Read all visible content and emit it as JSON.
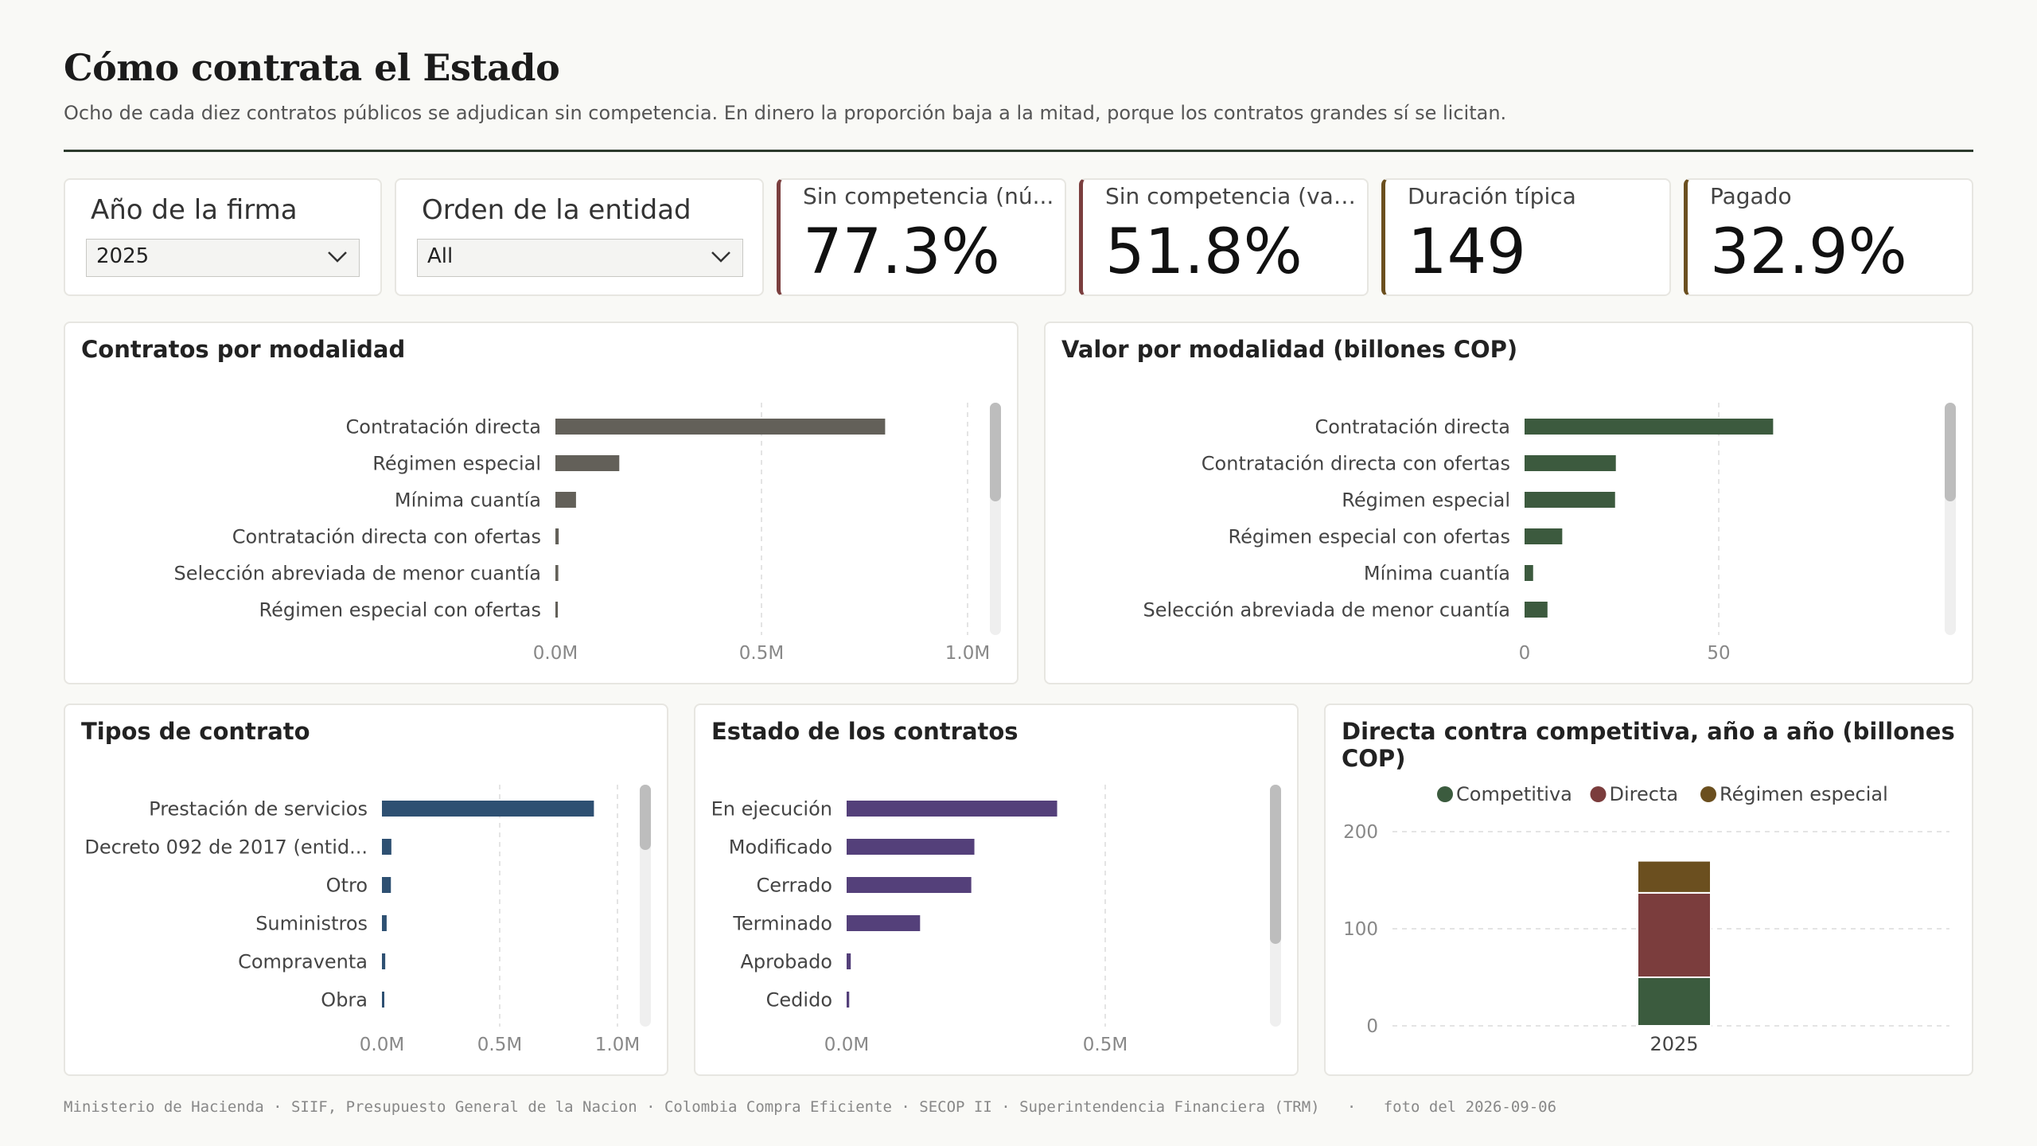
{
  "header": {
    "title": "Cómo contrata el Estado",
    "subtitle": "Ocho de cada diez contratos públicos se adjudican sin competencia. En dinero la proporción baja a la mitad, porque los contratos grandes sí se licitan."
  },
  "filters": {
    "year": {
      "label": "Año de la firma",
      "value": "2025"
    },
    "entity_order": {
      "label": "Orden de la entidad",
      "value": "All"
    }
  },
  "kpis": [
    {
      "label": "Sin competencia (nú...",
      "value": "77.3%",
      "accent": "#7b3f3f"
    },
    {
      "label": "Sin competencia (val...",
      "value": "51.8%",
      "accent": "#7b3f3f"
    },
    {
      "label": "Duración típica",
      "value": "149",
      "accent": "#6b4f1f"
    },
    {
      "label": "Pagado",
      "value": "32.9%",
      "accent": "#6b4f1f"
    }
  ],
  "colors": {
    "gray": "#636059",
    "green": "#3c5a3e",
    "blue": "#2e5072",
    "purple": "#54407a",
    "competitiva": "#3b5b3e",
    "directa": "#7b3d3d",
    "regimen": "#6b4f1f"
  },
  "chart_data": [
    {
      "id": "contratos_modalidad",
      "type": "bar",
      "orientation": "horizontal",
      "title": "Contratos por modalidad",
      "categories": [
        "Contratación directa",
        "Régimen especial",
        "Mínima cuantía",
        "Contratación directa con ofertas",
        "Selección abreviada de menor cuantía",
        "Régimen especial con ofertas"
      ],
      "values": [
        800000,
        155000,
        50000,
        8000,
        7000,
        6000
      ],
      "xlim": [
        0,
        1000000
      ],
      "ticks": [
        "0.0M",
        "0.5M",
        "1.0M"
      ],
      "tick_values": [
        0,
        500000,
        1000000
      ],
      "grid": true
    },
    {
      "id": "valor_modalidad",
      "type": "bar",
      "orientation": "horizontal",
      "title": "Valor por modalidad (billones COP)",
      "categories": [
        "Contratación directa",
        "Contratación directa con ofertas",
        "Régimen especial",
        "Régimen especial con ofertas",
        "Mínima cuantía",
        "Selección abreviada de menor cuantía"
      ],
      "values": [
        64,
        23.5,
        23.3,
        9.7,
        2.2,
        5.9
      ],
      "xlim": [
        0,
        84
      ],
      "ticks": [
        "0",
        "50"
      ],
      "tick_values": [
        0,
        50
      ],
      "grid": true
    },
    {
      "id": "tipos_contrato",
      "type": "bar",
      "orientation": "horizontal",
      "title": "Tipos de contrato",
      "categories": [
        "Prestación de servicios",
        "Decreto 092 de 2017 (entid...",
        "Otro",
        "Suministros",
        "Compraventa",
        "Obra"
      ],
      "values": [
        900000,
        40000,
        38000,
        20000,
        14000,
        10000
      ],
      "xlim": [
        0,
        1000000
      ],
      "ticks": [
        "0.0M",
        "0.5M",
        "1.0M"
      ],
      "tick_values": [
        0,
        500000,
        1000000
      ],
      "grid": true
    },
    {
      "id": "estado_contratos",
      "type": "bar",
      "orientation": "horizontal",
      "title": "Estado de los contratos",
      "categories": [
        "En ejecución",
        "Modificado",
        "Cerrado",
        "Terminado",
        "Aprobado",
        "Cedido"
      ],
      "values": [
        407000,
        247000,
        241000,
        142000,
        8000,
        5000
      ],
      "xlim": [
        0,
        640000
      ],
      "ticks": [
        "0.0M",
        "0.5M"
      ],
      "tick_values": [
        0,
        500000
      ],
      "grid": true
    },
    {
      "id": "directa_vs_competitiva",
      "type": "bar",
      "stacked": true,
      "title": "Directa contra competitiva, año a año (billones COP)",
      "categories": [
        "2025"
      ],
      "series": [
        {
          "name": "Competitiva",
          "values": [
            50
          ]
        },
        {
          "name": "Directa",
          "values": [
            87
          ]
        },
        {
          "name": "Régimen especial",
          "values": [
            33
          ]
        }
      ],
      "ylim": [
        0,
        200
      ],
      "yticks": [
        "0",
        "100",
        "200"
      ],
      "ytick_values": [
        0,
        100,
        200
      ],
      "legend": "top",
      "grid": true
    }
  ],
  "footer": {
    "sources": "Ministerio de Hacienda · SIIF, Presupuesto General de la Nacion · Colombia Compra Eficiente · SECOP II · Superintendencia Financiera (TRM)",
    "snapshot": "foto del 2026-09-06"
  }
}
